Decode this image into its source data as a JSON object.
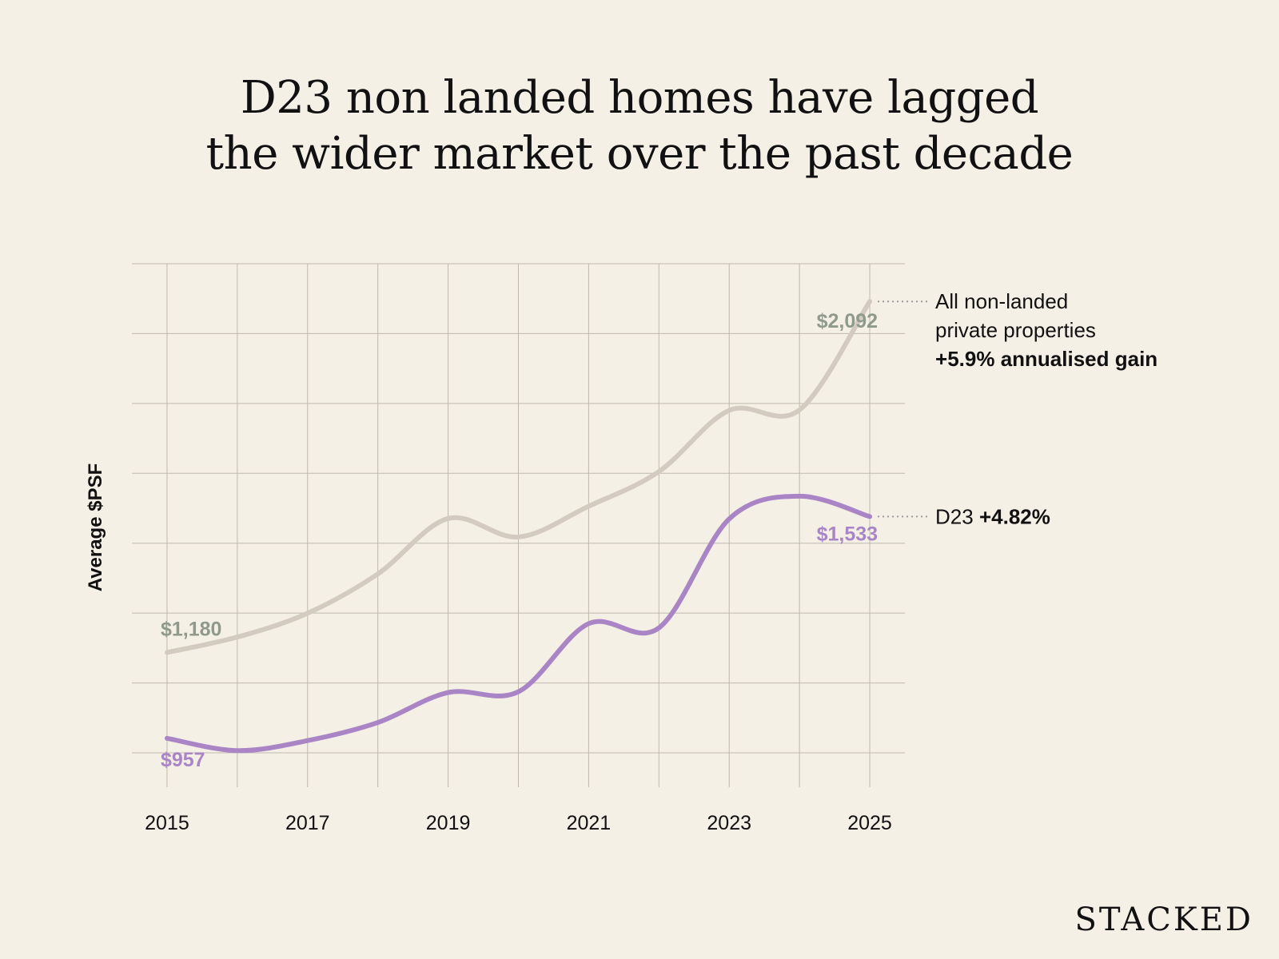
{
  "title": {
    "line1": "D23 non landed homes have lagged",
    "line2": "the wider market over the past decade"
  },
  "brand": "STACKED",
  "colors": {
    "background": "#f5f0e6",
    "grid": "#bfb9ad",
    "all_line": "#d3cbbf",
    "all_label": "#8f9a8c",
    "d23_line": "#a985c6",
    "d23_label": "#a985c6",
    "text": "#111111"
  },
  "chart_data": {
    "type": "line",
    "ylabel": "Average $PSF",
    "xlabel": "",
    "x_ticks": [
      "2015",
      "2017",
      "2019",
      "2021",
      "2023",
      "2025"
    ],
    "x": [
      2015,
      2016,
      2017,
      2018,
      2019,
      2020,
      2021,
      2022,
      2023,
      2024,
      2025
    ],
    "xlim": [
      2014.5,
      2025.5
    ],
    "ylim": [
      830,
      2190
    ],
    "grid": true,
    "series": [
      {
        "name": "All non-landed private properties",
        "color": "#d3cbbf",
        "values": [
          1180,
          1220,
          1282,
          1384,
          1528,
          1480,
          1560,
          1650,
          1809,
          1810,
          2092
        ],
        "start_label": "$1,180",
        "end_label": "$2,092",
        "legend": [
          "All non-landed",
          "private properties"
        ],
        "legend_bold": "+5.9% annualised gain"
      },
      {
        "name": "D23",
        "color": "#a985c6",
        "values": [
          957,
          925,
          951,
          998,
          1076,
          1078,
          1255,
          1244,
          1527,
          1586,
          1533
        ],
        "start_label": "$957",
        "end_label": "$1,533",
        "legend": [
          "D23"
        ],
        "legend_bold": "+4.82%"
      }
    ]
  }
}
